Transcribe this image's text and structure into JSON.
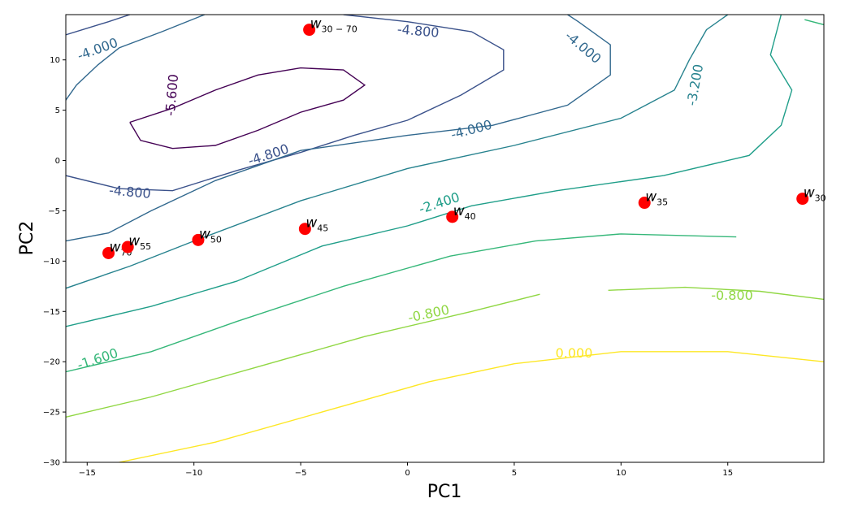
{
  "chart_data": {
    "type": "contour",
    "xlabel": "PC1",
    "ylabel": "PC2",
    "xlim": [
      -16.0,
      19.5
    ],
    "ylim": [
      -30,
      14.5
    ],
    "x_ticks": [
      -15,
      -10,
      -5,
      0,
      5,
      10,
      15
    ],
    "y_ticks": [
      -30,
      -25,
      -20,
      -15,
      -10,
      -5,
      0,
      5,
      10
    ],
    "x_tick_labels": [
      "−15",
      "−10",
      "−5",
      "0",
      "5",
      "10",
      "15"
    ],
    "y_tick_labels": [
      "−30",
      "−25",
      "−20",
      "−15",
      "−10",
      "−5",
      "0",
      "5",
      "10"
    ],
    "grid": false,
    "colormap": "viridis",
    "contour_levels": [
      {
        "value": -5.6,
        "label": "-5.600",
        "color": "#440154",
        "lines": [
          [
            [
              -13.0,
              3.8
            ],
            [
              -11.0,
              5.2
            ],
            [
              -9.0,
              7.0
            ],
            [
              -7.0,
              8.5
            ],
            [
              -5.0,
              9.2
            ],
            [
              -3.0,
              9.0
            ],
            [
              -2.0,
              7.5
            ],
            [
              -3.0,
              6.0
            ],
            [
              -5.0,
              4.8
            ],
            [
              -7.0,
              3.0
            ],
            [
              -9.0,
              1.5
            ],
            [
              -11.0,
              1.2
            ],
            [
              -12.5,
              2.0
            ],
            [
              -13.0,
              3.8
            ]
          ]
        ]
      },
      {
        "value": -4.8,
        "label": "-4.800",
        "color": "#3b528b",
        "lines": [
          [
            [
              -16.0,
              -1.5
            ],
            [
              -13.5,
              -2.8
            ],
            [
              -11.0,
              -3.0
            ],
            [
              -8.0,
              -1.0
            ],
            [
              -5.0,
              0.8
            ],
            [
              -2.5,
              2.5
            ],
            [
              0.0,
              4.0
            ],
            [
              2.5,
              6.5
            ],
            [
              4.5,
              9.0
            ],
            [
              4.5,
              11.0
            ],
            [
              3.0,
              12.8
            ],
            [
              0.0,
              13.8
            ],
            [
              -3.0,
              14.5
            ]
          ],
          [
            [
              -16.0,
              12.5
            ],
            [
              -14.0,
              13.8
            ],
            [
              -13.0,
              14.5
            ]
          ]
        ]
      },
      {
        "value": -4.0,
        "label": "-4.000",
        "color": "#31688e",
        "lines": [
          [
            [
              -16.0,
              -8.0
            ],
            [
              -14.0,
              -7.2
            ],
            [
              -12.0,
              -5.0
            ],
            [
              -9.0,
              -2.0
            ],
            [
              -5.0,
              1.0
            ],
            [
              0.0,
              2.5
            ],
            [
              4.0,
              3.5
            ],
            [
              7.5,
              5.5
            ],
            [
              9.5,
              8.5
            ],
            [
              9.5,
              11.5
            ],
            [
              8.0,
              13.8
            ],
            [
              7.5,
              14.5
            ]
          ],
          [
            [
              -16.0,
              6.0
            ],
            [
              -15.5,
              7.5
            ],
            [
              -14.5,
              9.5
            ],
            [
              -13.5,
              11.2
            ],
            [
              -11.5,
              12.8
            ],
            [
              -9.5,
              14.5
            ]
          ]
        ]
      },
      {
        "value": -3.2,
        "label": "-3.200",
        "color": "#26828e",
        "lines": [
          [
            [
              -16.0,
              -12.7
            ],
            [
              -13.0,
              -10.5
            ],
            [
              -10.0,
              -8.0
            ],
            [
              -5.0,
              -4.0
            ],
            [
              0.0,
              -0.8
            ],
            [
              5.0,
              1.5
            ],
            [
              10.0,
              4.2
            ],
            [
              12.5,
              7.0
            ],
            [
              13.2,
              10.0
            ],
            [
              14.0,
              13.0
            ],
            [
              15.0,
              14.5
            ]
          ]
        ]
      },
      {
        "value": -2.4,
        "label": "-2.400",
        "color": "#1f9e89",
        "lines": [
          [
            [
              -16.0,
              -16.5
            ],
            [
              -12.0,
              -14.5
            ],
            [
              -8.0,
              -12.0
            ],
            [
              -4.0,
              -8.5
            ],
            [
              0.0,
              -6.5
            ],
            [
              3.0,
              -4.5
            ],
            [
              7.0,
              -3.0
            ],
            [
              12.0,
              -1.5
            ],
            [
              16.0,
              0.5
            ],
            [
              17.5,
              3.5
            ],
            [
              18.0,
              7.0
            ],
            [
              17.0,
              10.5
            ],
            [
              17.5,
              14.5
            ]
          ]
        ]
      },
      {
        "value": -1.6,
        "label": "-1.600",
        "color": "#35b779",
        "lines": [
          [
            [
              -16.0,
              -21.0
            ],
            [
              -12.0,
              -19.0
            ],
            [
              -8.0,
              -16.0
            ],
            [
              -3.0,
              -12.5
            ],
            [
              2.0,
              -9.5
            ],
            [
              6.0,
              -8.0
            ],
            [
              10.0,
              -7.3
            ],
            [
              15.4,
              -7.6
            ]
          ],
          [
            [
              18.6,
              14.0
            ],
            [
              19.5,
              13.5
            ]
          ]
        ]
      },
      {
        "value": -0.8,
        "label": "-0.800",
        "color": "#90d743",
        "lines": [
          [
            [
              -16.0,
              -25.5
            ],
            [
              -12.0,
              -23.5
            ],
            [
              -7.0,
              -20.5
            ],
            [
              -2.0,
              -17.5
            ],
            [
              3.0,
              -15.0
            ],
            [
              6.2,
              -13.3
            ]
          ],
          [
            [
              9.4,
              -12.9
            ],
            [
              13.0,
              -12.6
            ],
            [
              16.5,
              -13.0
            ],
            [
              19.5,
              -13.8
            ]
          ]
        ]
      },
      {
        "value": 0.0,
        "label": "0.000",
        "color": "#fde725",
        "lines": [
          [
            [
              -13.5,
              -30.0
            ],
            [
              -9.0,
              -28.0
            ],
            [
              -4.0,
              -25.0
            ],
            [
              1.0,
              -22.0
            ],
            [
              5.0,
              -20.2
            ],
            [
              10.0,
              -19.0
            ],
            [
              15.0,
              -19.0
            ],
            [
              19.5,
              -20.0
            ]
          ]
        ]
      }
    ],
    "level_labels": [
      {
        "text": "-4.000",
        "x": -14.5,
        "y": 11.0,
        "angle": -20,
        "color": "#31688e"
      },
      {
        "text": "-4.800",
        "x": 0.5,
        "y": 12.8,
        "angle": 5,
        "color": "#3b528b"
      },
      {
        "text": "-4.000",
        "x": 8.2,
        "y": 11.2,
        "angle": 40,
        "color": "#31688e"
      },
      {
        "text": "-3.200",
        "x": 13.5,
        "y": 7.5,
        "angle": -80,
        "color": "#26828e"
      },
      {
        "text": "-5.600",
        "x": -11.0,
        "y": 6.5,
        "angle": -85,
        "color": "#440154"
      },
      {
        "text": "-4.000",
        "x": 3.0,
        "y": 3.0,
        "angle": -15,
        "color": "#31688e"
      },
      {
        "text": "-4.800",
        "x": -6.5,
        "y": 0.5,
        "angle": -18,
        "color": "#3b528b"
      },
      {
        "text": "-4.800",
        "x": -13.0,
        "y": -3.2,
        "angle": 5,
        "color": "#3b528b"
      },
      {
        "text": "-2.400",
        "x": 1.5,
        "y": -4.3,
        "angle": -18,
        "color": "#1f9e89"
      },
      {
        "text": "-1.600",
        "x": -14.5,
        "y": -19.8,
        "angle": -18,
        "color": "#35b779"
      },
      {
        "text": "-0.800",
        "x": 1.0,
        "y": -15.3,
        "angle": -12,
        "color": "#90d743"
      },
      {
        "text": "-0.800",
        "x": 15.2,
        "y": -13.5,
        "angle": 0,
        "color": "#90d743"
      },
      {
        "text": "0.000",
        "x": 7.8,
        "y": -19.2,
        "angle": 0,
        "color": "#fde725"
      }
    ],
    "points": [
      {
        "name": "w",
        "sub": "70",
        "x": -14.0,
        "y": -9.2
      },
      {
        "name": "w",
        "sub": "55",
        "x": -13.1,
        "y": -8.6
      },
      {
        "name": "w",
        "sub": "50",
        "x": -9.8,
        "y": -7.9
      },
      {
        "name": "w",
        "sub": "45",
        "x": -4.8,
        "y": -6.8
      },
      {
        "name": "w",
        "sub": "40",
        "x": 2.1,
        "y": -5.6
      },
      {
        "name": "w",
        "sub": "35",
        "x": 11.1,
        "y": -4.2
      },
      {
        "name": "w",
        "sub": "30",
        "x": 18.5,
        "y": -3.8
      },
      {
        "name": "w",
        "sub": "30 − 70",
        "x": -4.6,
        "y": 13.0
      }
    ],
    "point_color": "#ff0000"
  }
}
